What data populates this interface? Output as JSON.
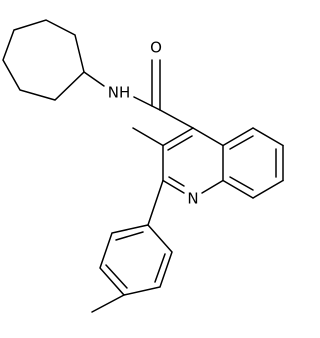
{
  "atoms": {
    "oxygen": "O",
    "amide_nitrogen": "NH",
    "ring_nitrogen": "N"
  }
}
